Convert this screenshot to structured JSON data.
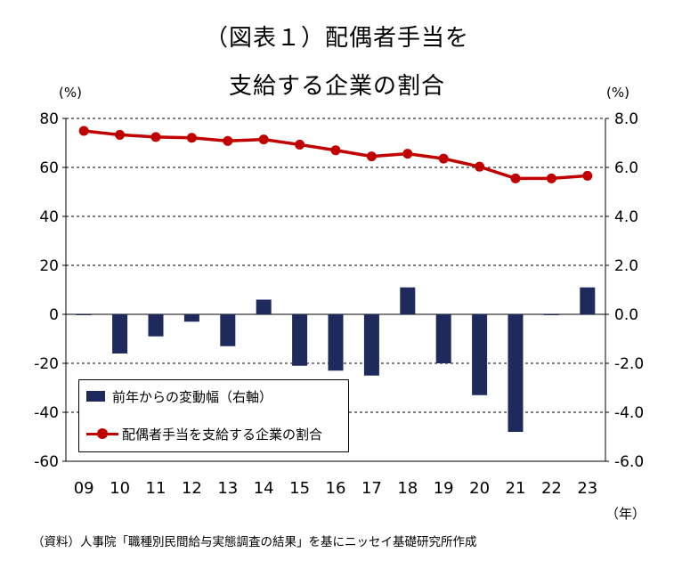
{
  "title_line1": "（図表１）配偶者手当を",
  "title_line2": "支給する企業の割合",
  "left_unit": "(%)",
  "right_unit": "(%)",
  "x_unit": "（年）",
  "source": "（資料）人事院「職種別民間給与実態調査の結果」を基にニッセイ基礎研究所作成",
  "colors": {
    "bar": "#1f2a5c",
    "line": "#c00000",
    "grid": "#000000"
  },
  "chart_data": {
    "type": "bar+line",
    "categories": [
      "09",
      "10",
      "11",
      "12",
      "13",
      "14",
      "15",
      "16",
      "17",
      "18",
      "19",
      "20",
      "21",
      "22",
      "23"
    ],
    "series": [
      {
        "name": "前年からの変動幅（右軸）",
        "type": "bar",
        "axis": "right",
        "values": [
          0.0,
          -1.6,
          -0.9,
          -0.3,
          -1.3,
          0.6,
          -2.1,
          -2.3,
          -2.5,
          1.1,
          -2.0,
          -3.3,
          -4.8,
          0.0,
          1.1
        ]
      },
      {
        "name": "配偶者手当を支給する企業の割合",
        "type": "line",
        "axis": "left",
        "values": [
          74.9,
          73.3,
          72.4,
          72.1,
          70.8,
          71.4,
          69.3,
          67.0,
          64.5,
          65.6,
          63.6,
          60.3,
          55.5,
          55.5,
          56.6
        ]
      }
    ],
    "left_axis": {
      "ylim": [
        -60,
        80
      ],
      "ticks": [
        80,
        60,
        40,
        20,
        0,
        -20,
        -40,
        -60
      ],
      "tick_labels": [
        "80",
        "60",
        "40",
        "20",
        "0",
        "-20",
        "-40",
        "-60"
      ]
    },
    "right_axis": {
      "ylim": [
        -6,
        8
      ],
      "ticks": [
        8,
        6,
        4,
        2,
        0,
        -2,
        -4,
        -6
      ],
      "tick_labels": [
        "8.0",
        "6.0",
        "4.0",
        "2.0",
        "0.0",
        "-2.0",
        "-4.0",
        "-6.0"
      ]
    },
    "grid": "dashed horizontal",
    "legend_position": "bottom-left"
  }
}
